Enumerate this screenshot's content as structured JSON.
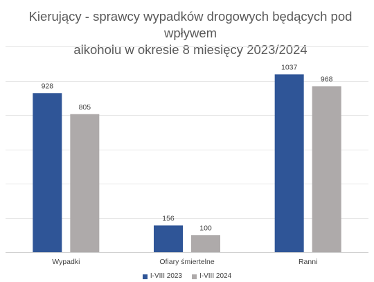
{
  "chart_data": {
    "type": "bar",
    "title_lines": [
      "Kierujący - sprawcy wypadków drogowych będących pod wpływem",
      "alkoholu w okresie 8 miesięcy 2023/2024"
    ],
    "categories": [
      "Wypadki",
      "Ofiary śmiertelne",
      "Ranni"
    ],
    "series": [
      {
        "name": "I-VIII 2023",
        "color": "#2F5597",
        "values": [
          928,
          156,
          1037
        ]
      },
      {
        "name": "I-VIII 2024",
        "color": "#AEAAAA",
        "values": [
          805,
          100,
          968
        ]
      }
    ],
    "ylim": [
      0,
      1200
    ],
    "gridlines": true,
    "data_labels": true,
    "legend_position": "bottom"
  }
}
